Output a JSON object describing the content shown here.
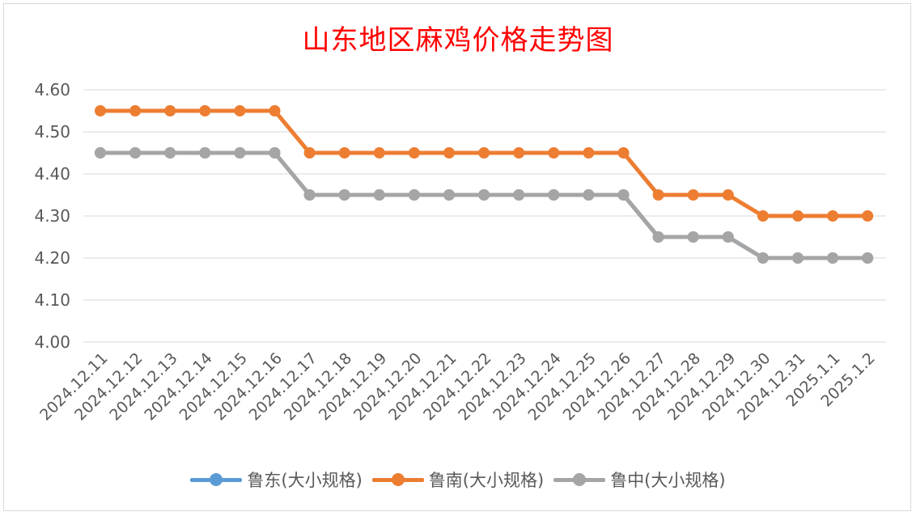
{
  "chart_data": {
    "type": "line",
    "title": "山东地区麻鸡价格走势图",
    "categories": [
      "2024.12.11",
      "2024.12.12",
      "2024.12.13",
      "2024.12.14",
      "2024.12.15",
      "2024.12.16",
      "2024.12.17",
      "2024.12.18",
      "2024.12.19",
      "2024.12.20",
      "2024.12.21",
      "2024.12.22",
      "2024.12.23",
      "2024.12.24",
      "2024.12.25",
      "2024.12.26",
      "2024.12.27",
      "2024.12.28",
      "2024.12.29",
      "2024.12.30",
      "2024.12.31",
      "2025.1.1",
      "2025.1.2"
    ],
    "yticks": [
      "4.00",
      "4.10",
      "4.20",
      "4.30",
      "4.40",
      "4.50",
      "4.60"
    ],
    "ylim": [
      4.0,
      4.6
    ],
    "grid": true,
    "legend_position": "bottom",
    "series": [
      {
        "name": "鲁东(大小规格)",
        "color": "#5b9bd5",
        "values": [
          4.45,
          4.45,
          4.45,
          4.45,
          4.45,
          4.45,
          4.35,
          4.35,
          4.35,
          4.35,
          4.35,
          4.35,
          4.35,
          4.35,
          4.35,
          4.35,
          4.25,
          4.25,
          4.25,
          4.2,
          4.2,
          4.2,
          4.2
        ]
      },
      {
        "name": "鲁南(大小规格)",
        "color": "#ed7d31",
        "values": [
          4.55,
          4.55,
          4.55,
          4.55,
          4.55,
          4.55,
          4.45,
          4.45,
          4.45,
          4.45,
          4.45,
          4.45,
          4.45,
          4.45,
          4.45,
          4.45,
          4.35,
          4.35,
          4.35,
          4.3,
          4.3,
          4.3,
          4.3
        ]
      },
      {
        "name": "鲁中(大小规格)",
        "color": "#a5a5a5",
        "values": [
          4.45,
          4.45,
          4.45,
          4.45,
          4.45,
          4.45,
          4.35,
          4.35,
          4.35,
          4.35,
          4.35,
          4.35,
          4.35,
          4.35,
          4.35,
          4.35,
          4.25,
          4.25,
          4.25,
          4.2,
          4.2,
          4.2,
          4.2
        ]
      }
    ]
  }
}
